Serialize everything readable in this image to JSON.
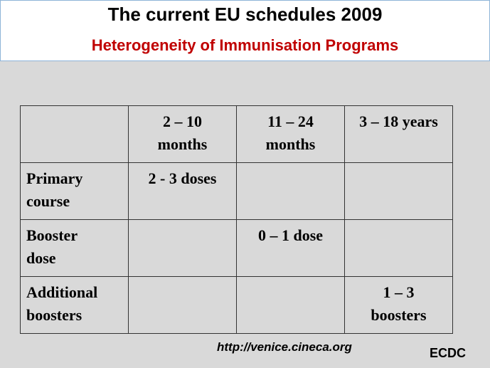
{
  "header": {
    "title": "The current EU schedules 2009",
    "subtitle": "Heterogeneity of Immunisation Programs"
  },
  "table": {
    "columns": [
      "2 – 10\nmonths",
      "11 – 24\nmonths",
      "3 – 18 years"
    ],
    "rows": [
      {
        "label": "Primary\ncourse",
        "cells": [
          "2 - 3 doses",
          null,
          null
        ]
      },
      {
        "label": "Booster\ndose",
        "cells": [
          null,
          "0 – 1 dose",
          null
        ]
      },
      {
        "label": "Additional\nboosters",
        "cells": [
          null,
          null,
          "1 – 3\nboosters"
        ]
      }
    ]
  },
  "footer": {
    "url": "http://venice.cineca.org",
    "source": "ECDC"
  }
}
